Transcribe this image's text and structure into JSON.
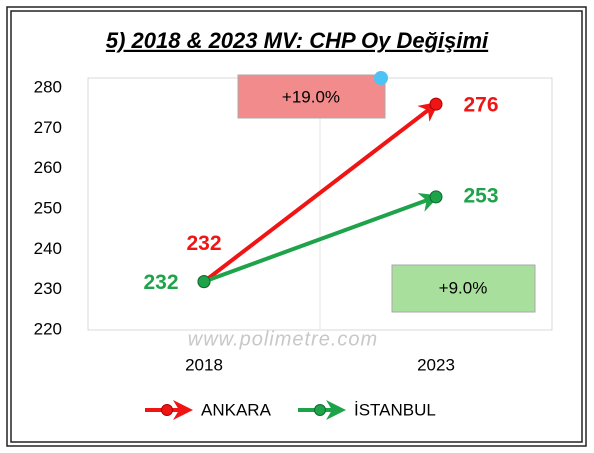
{
  "chart_data": {
    "type": "line",
    "title": "5) 2018 & 2023 MV: CHP Oy Değişimi",
    "categories": [
      "2018",
      "2023"
    ],
    "series": [
      {
        "name": "ANKARA",
        "color": "#f01515",
        "values": [
          232,
          276
        ]
      },
      {
        "name": "İSTANBUL",
        "color": "#1ea34a",
        "values": [
          232,
          253
        ]
      }
    ],
    "annotations": [
      "+19.0%",
      "+9.0%",
      "www.polimetre.com"
    ],
    "ylim": [
      220,
      280
    ],
    "yticks": [
      220,
      230,
      240,
      250,
      260,
      270,
      280
    ],
    "grid": false,
    "legend": "bottom"
  }
}
